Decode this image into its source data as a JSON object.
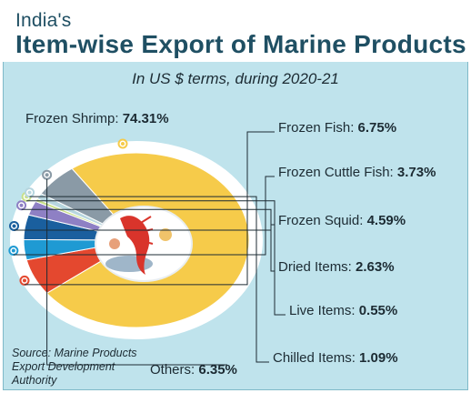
{
  "header": {
    "title_small": "India's",
    "title_main": "Item-wise Export of Marine Products",
    "subtitle": "In US $ terms, during 2020-21"
  },
  "source": "Source: Marine Products Export Development Authority",
  "chart_data": {
    "type": "pie",
    "title": "Item-wise Export of Marine Products",
    "subtitle": "In US $ terms, during 2020-21",
    "unit": "%",
    "slices": [
      {
        "label": "Frozen Shrimp",
        "value": 74.31,
        "value_text": "74.31%",
        "color": "#f6cb4a"
      },
      {
        "label": "Frozen Fish",
        "value": 6.75,
        "value_text": "6.75%",
        "color": "#e4482f"
      },
      {
        "label": "Frozen Cuttle Fish",
        "value": 3.73,
        "value_text": "3.73%",
        "color": "#1f9ad3"
      },
      {
        "label": "Frozen Squid",
        "value": 4.59,
        "value_text": "4.59%",
        "color": "#1a5f9e"
      },
      {
        "label": "Dried Items",
        "value": 2.63,
        "value_text": "2.63%",
        "color": "#8e80c4"
      },
      {
        "label": "Live Items",
        "value": 0.55,
        "value_text": "0.55%",
        "color": "#c8e08a"
      },
      {
        "label": "Chilled Items",
        "value": 1.09,
        "value_text": "1.09%",
        "color": "#b7d6df"
      },
      {
        "label": "Others",
        "value": 6.35,
        "value_text": "6.35%",
        "color": "#8a9aa6"
      }
    ]
  }
}
